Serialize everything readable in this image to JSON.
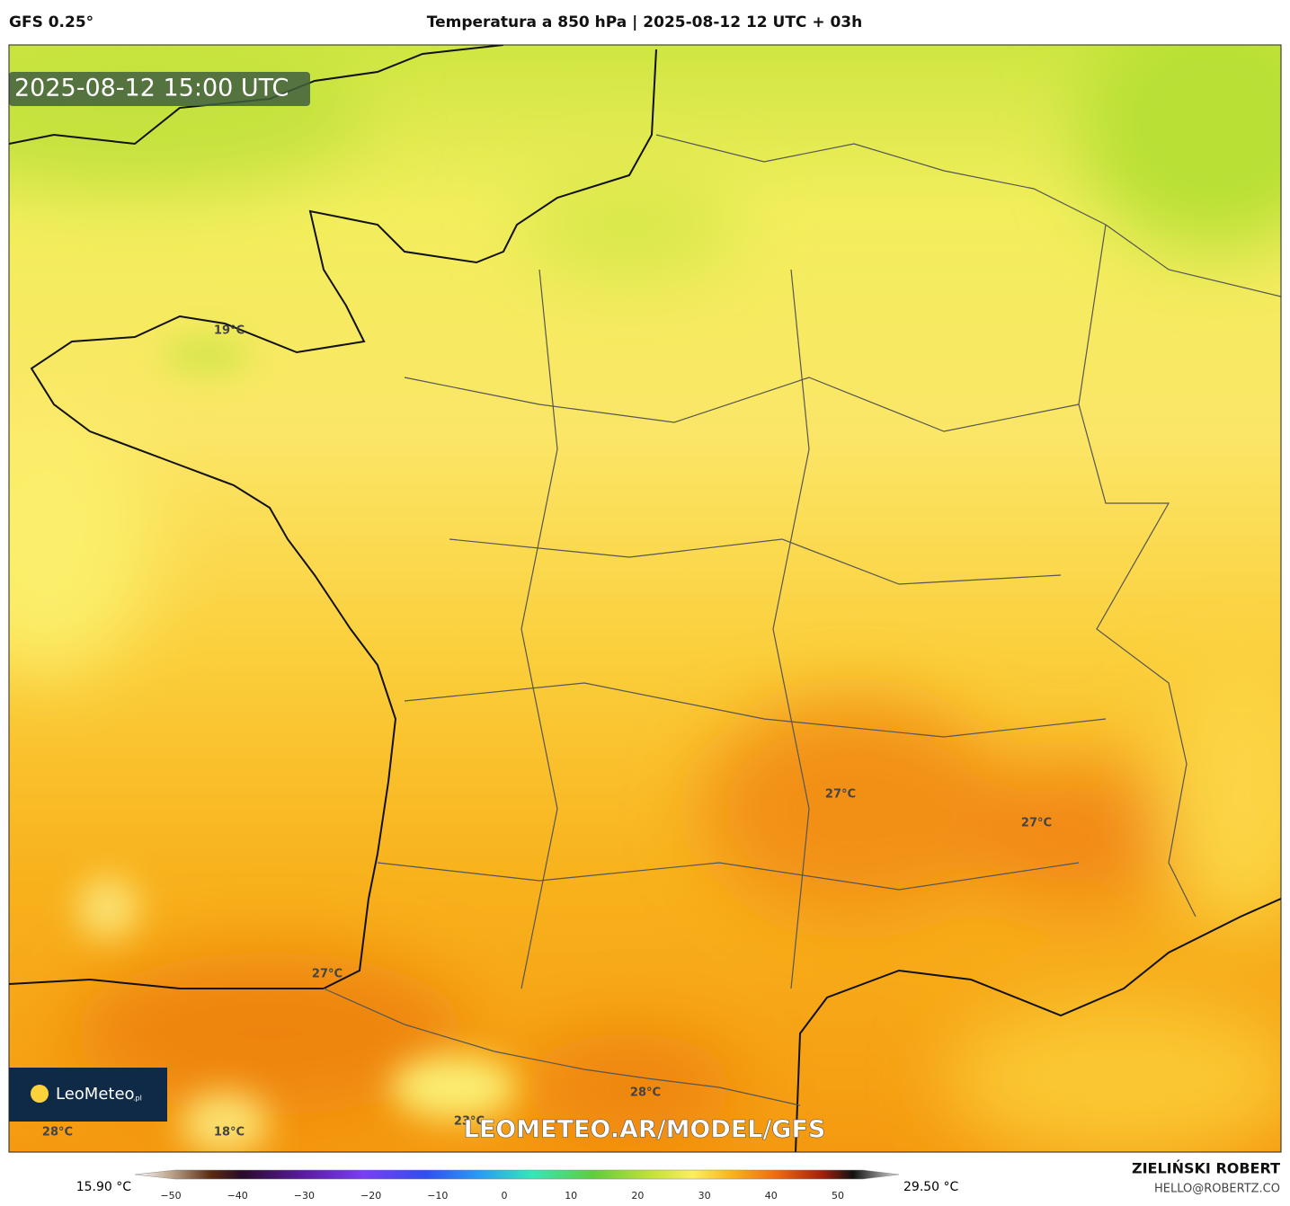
{
  "header": {
    "model": "GFS 0.25°",
    "title": "Temperatura a 850 hPa | 2025-08-12 12 UTC + 03h"
  },
  "map": {
    "timestamp": "2025-08-12 15:00 UTC",
    "contour_labels": [
      "19°C",
      "27°C",
      "27°C",
      "27°C",
      "28°C",
      "28°C",
      "23°C",
      "18°C"
    ],
    "logo": {
      "name": "LeoMeteo",
      "suffix": ".pl"
    },
    "watermark": "LEOMETEO.AR/MODEL/GFS"
  },
  "colorbar": {
    "min_label": "15.90 °C",
    "max_label": "29.50 °C",
    "ticks": [
      "−50",
      "−40",
      "−30",
      "−20",
      "−10",
      "0",
      "10",
      "20",
      "30",
      "40",
      "50"
    ]
  },
  "footer": {
    "author": "ZIELIŃSKI ROBERT",
    "email": "HELLO@ROBERTZ.CO"
  }
}
